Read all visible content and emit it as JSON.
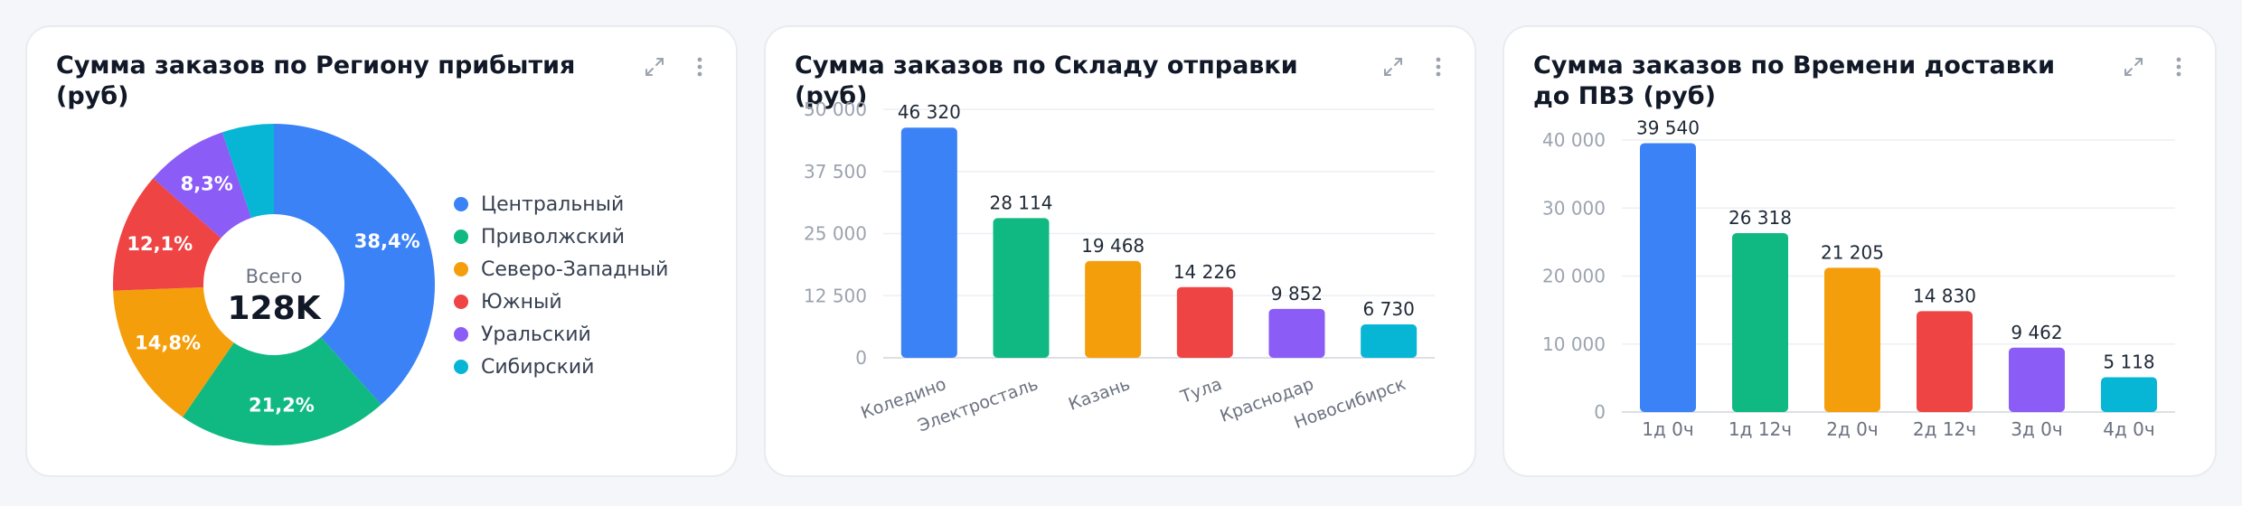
{
  "charts": [
    {
      "title": "Сумма заказов по Региону прибытия (руб)",
      "chart_data": {
        "type": "pie",
        "donut": true,
        "labels": [
          "Центральный",
          "Приволжский",
          "Северо-Западный",
          "Южный",
          "Уральский",
          "Сибирский"
        ],
        "values": [
          38.4,
          21.2,
          14.8,
          12.1,
          8.3,
          5.2
        ],
        "value_labels": [
          "38,4%",
          "21,2%",
          "14,8%",
          "12,1%",
          "8,3%",
          ""
        ],
        "colors": [
          "#3b82f6",
          "#10b981",
          "#f59e0b",
          "#ef4444",
          "#8b5cf6",
          "#06b6d4"
        ],
        "center_label": "Всего",
        "center_value": "128K",
        "legend": "right"
      }
    },
    {
      "title": "Сумма заказов по Складу отправки (руб)",
      "chart_data": {
        "type": "bar",
        "categories": [
          "Коледино",
          "Электросталь",
          "Казань",
          "Тула",
          "Краснодар",
          "Новосибирск"
        ],
        "values": [
          46320,
          28114,
          19468,
          14226,
          9852,
          6730
        ],
        "value_labels": [
          "46 320",
          "28 114",
          "19 468",
          "14 226",
          "9 852",
          "6 730"
        ],
        "colors": [
          "#3b82f6",
          "#10b981",
          "#f59e0b",
          "#ef4444",
          "#8b5cf6",
          "#06b6d4"
        ],
        "ylim": [
          0,
          50000
        ],
        "yticks": [
          0,
          12500,
          25000,
          37500,
          50000
        ],
        "ytick_labels": [
          "0",
          "12 500",
          "25 000",
          "37 500",
          "50 000"
        ],
        "x_labels_rotated": true,
        "grid": true
      }
    },
    {
      "title": "Сумма заказов по Времени доставки до ПВЗ (руб)",
      "chart_data": {
        "type": "bar",
        "categories": [
          "1д 0ч",
          "1д 12ч",
          "2д 0ч",
          "2д 12ч",
          "3д 0ч",
          "4д 0ч"
        ],
        "values": [
          39540,
          26318,
          21205,
          14830,
          9462,
          5118
        ],
        "value_labels": [
          "39 540",
          "26 318",
          "21 205",
          "14 830",
          "9 462",
          "5 118"
        ],
        "colors": [
          "#3b82f6",
          "#10b981",
          "#f59e0b",
          "#ef4444",
          "#8b5cf6",
          "#06b6d4"
        ],
        "ylim": [
          0,
          40000
        ],
        "yticks": [
          0,
          10000,
          20000,
          30000,
          40000
        ],
        "ytick_labels": [
          "0",
          "10 000",
          "20 000",
          "30 000",
          "40 000"
        ],
        "x_labels_rotated": false,
        "grid": true
      }
    }
  ],
  "icons": {
    "expand": "expand-icon",
    "menu": "more-vertical-icon"
  }
}
